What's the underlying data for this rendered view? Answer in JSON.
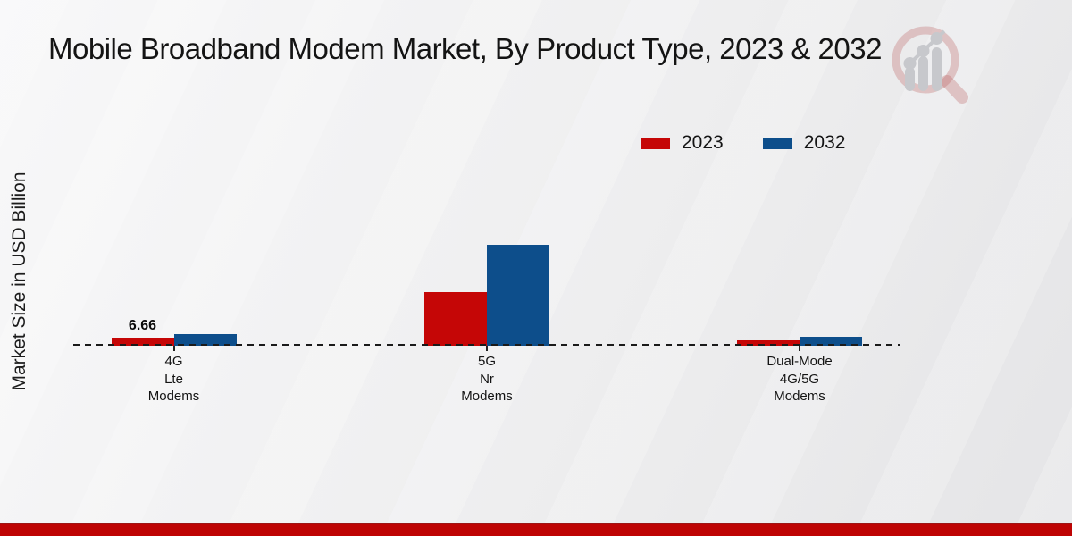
{
  "page": {
    "title": "Mobile Broadband Modem Market, By Product Type, 2023 & 2032"
  },
  "colors": {
    "series_2023": "#c50606",
    "series_2032": "#0d4e8b",
    "footer_accent": "#be0404",
    "axis": "#1a1a1a"
  },
  "watermark": {
    "icon": "magnifier-bar-chart-logo"
  },
  "chart_data": {
    "type": "bar",
    "title": "Mobile Broadband Modem Market, By Product Type, 2023 & 2032",
    "xlabel": "",
    "ylabel": "Market Size in USD Billion",
    "categories": [
      "4G Lte Modems",
      "5G Nr Modems",
      "Dual-Mode 4G/5G Modems"
    ],
    "category_label_lines": [
      [
        "4G",
        "Lte",
        "Modems"
      ],
      [
        "5G",
        "Nr",
        "Modems"
      ],
      [
        "Dual-Mode",
        "4G/5G",
        "Modems"
      ]
    ],
    "series": [
      {
        "name": "2023",
        "color": "#c50606",
        "values": [
          6.66,
          44.4,
          4.4
        ]
      },
      {
        "name": "2032",
        "color": "#0d4e8b",
        "values": [
          9.9,
          83.6,
          7.4
        ]
      }
    ],
    "data_labels": [
      {
        "series": "2023",
        "category": "4G Lte Modems",
        "text": "6.66"
      }
    ],
    "ylim": [
      0,
      90
    ],
    "grid": false,
    "baseline_style": "dashed",
    "legend_position": "top-right",
    "legend_entries": [
      "2023",
      "2032"
    ]
  }
}
